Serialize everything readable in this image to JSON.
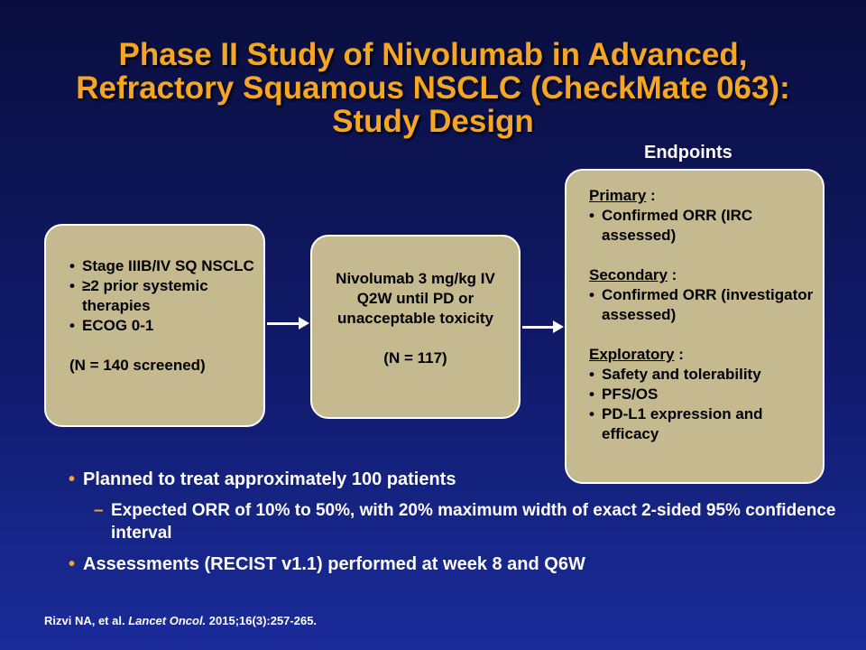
{
  "title": {
    "line1": "Phase II Study of Nivolumab in Advanced,",
    "line2": "Refractory Squamous NSCLC (CheckMate 063):",
    "line3": "Study Design"
  },
  "endpoints_heading": "Endpoints",
  "eligibility_box": {
    "items": [
      "Stage IIIB/IV SQ NSCLC",
      "≥2 prior systemic therapies",
      "ECOG 0-1"
    ],
    "count": "(N = 140 screened)"
  },
  "treatment_box": {
    "text": "Nivolumab 3 mg/kg IV Q2W until PD or unacceptable toxicity",
    "count": "(N = 117)"
  },
  "endpoints_box": {
    "primary_label": "Primary",
    "primary_items": [
      "Confirmed ORR (IRC assessed)"
    ],
    "secondary_label": "Secondary",
    "secondary_items": [
      "Confirmed ORR (investigator assessed)"
    ],
    "exploratory_label": "Exploratory",
    "exploratory_items": [
      "Safety and tolerability",
      "PFS/OS",
      "PD-L1 expression and efficacy"
    ]
  },
  "bullets": {
    "b1": "Planned to treat approximately 100 patients",
    "b1_sub": "Expected ORR of 10% to 50%, with 20% maximum width of exact 2-sided 95% confidence interval",
    "b2": "Assessments (RECIST v1.1) performed at week 8 and Q6W"
  },
  "citation": {
    "authors": "Rizvi NA, et al.",
    "journal": "Lancet Oncol.",
    "details": "2015;16(3):257-265."
  },
  "colors": {
    "title": "#f5a623",
    "box_fill": "#c5b98f",
    "background": "#101a6a"
  }
}
